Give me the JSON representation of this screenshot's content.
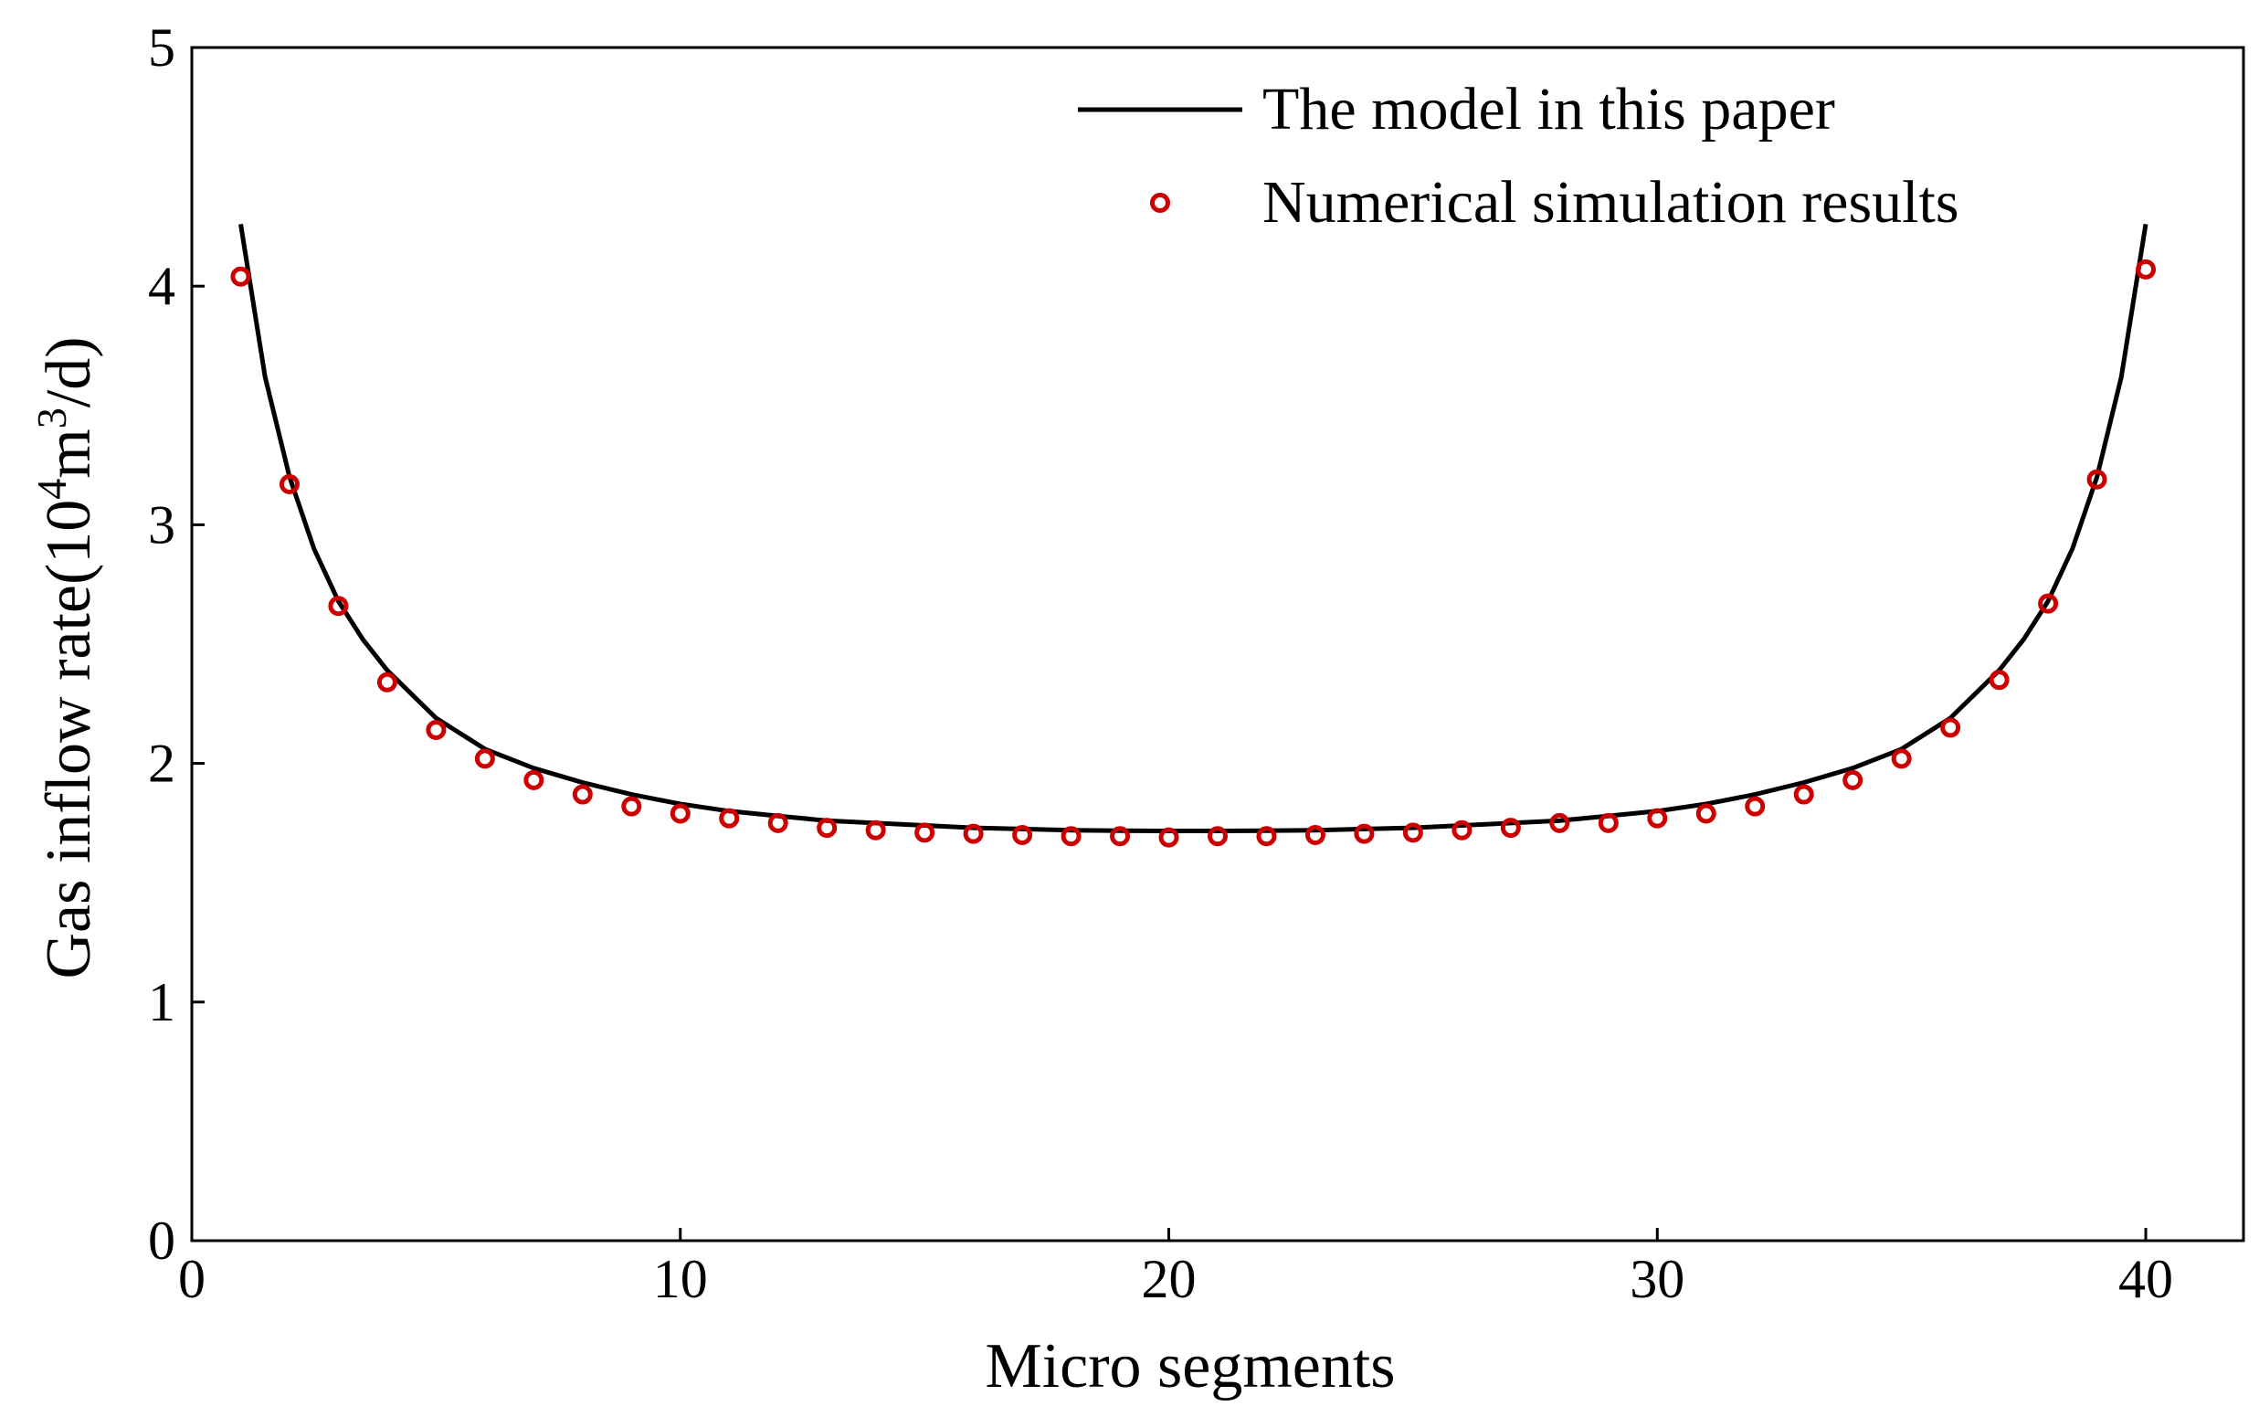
{
  "chart_data": {
    "type": "line",
    "xlabel": "Micro segments",
    "ylabel_text": "Gas inflow rate(10",
    "ylabel_sup1": "4",
    "ylabel_mid": "m",
    "ylabel_sup2": "3",
    "ylabel_end": "/d)",
    "xlim": [
      0,
      42
    ],
    "ylim": [
      0,
      5
    ],
    "xticks": [
      0,
      10,
      20,
      30,
      40
    ],
    "xtick_labels": [
      "0",
      "10",
      "20",
      "30",
      "40"
    ],
    "yticks": [
      0,
      1,
      2,
      3,
      4,
      5
    ],
    "ytick_labels": [
      "0",
      "1",
      "2",
      "3",
      "4",
      "5"
    ],
    "grid": false,
    "legend_position": "top-right",
    "series": [
      {
        "name": "The model in this paper",
        "style": "line",
        "color": "#000000",
        "x": [
          1,
          1.5,
          2,
          2.5,
          3,
          3.5,
          4,
          5,
          6,
          7,
          8,
          9,
          10,
          11,
          12,
          13,
          14,
          15,
          16,
          17,
          18,
          19,
          20,
          20.5,
          21,
          22,
          23,
          24,
          25,
          26,
          27,
          28,
          29,
          30,
          31,
          32,
          33,
          34,
          35,
          36,
          37,
          37.5,
          38,
          38.5,
          39,
          39.5,
          40
        ],
        "y": [
          4.26,
          3.62,
          3.2,
          2.9,
          2.68,
          2.52,
          2.39,
          2.19,
          2.06,
          1.98,
          1.92,
          1.87,
          1.83,
          1.8,
          1.78,
          1.76,
          1.75,
          1.74,
          1.73,
          1.725,
          1.72,
          1.718,
          1.717,
          1.717,
          1.717,
          1.718,
          1.72,
          1.725,
          1.73,
          1.74,
          1.75,
          1.76,
          1.78,
          1.8,
          1.83,
          1.87,
          1.92,
          1.98,
          2.06,
          2.19,
          2.39,
          2.52,
          2.68,
          2.9,
          3.2,
          3.62,
          4.26
        ]
      },
      {
        "name": "Numerical simulation results",
        "style": "marker",
        "marker": "open-circle",
        "color": "#cc0000",
        "x": [
          1,
          2,
          3,
          4,
          5,
          6,
          7,
          8,
          9,
          10,
          11,
          12,
          13,
          14,
          15,
          16,
          17,
          18,
          19,
          20,
          21,
          22,
          23,
          24,
          25,
          26,
          27,
          28,
          29,
          30,
          31,
          32,
          33,
          34,
          35,
          36,
          37,
          38,
          39,
          40
        ],
        "y": [
          4.04,
          3.17,
          2.66,
          2.34,
          2.14,
          2.02,
          1.93,
          1.87,
          1.82,
          1.79,
          1.77,
          1.75,
          1.73,
          1.72,
          1.71,
          1.705,
          1.7,
          1.695,
          1.695,
          1.69,
          1.695,
          1.695,
          1.7,
          1.705,
          1.71,
          1.72,
          1.73,
          1.75,
          1.75,
          1.77,
          1.79,
          1.82,
          1.87,
          1.93,
          2.02,
          2.15,
          2.35,
          2.67,
          3.19,
          4.07
        ]
      }
    ]
  }
}
